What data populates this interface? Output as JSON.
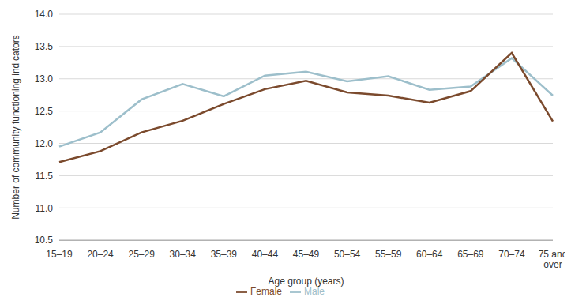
{
  "chart_data": {
    "type": "line",
    "x_label": "Age group (years)",
    "y_label": "Number of community functioning indicators",
    "categories": [
      "15–19",
      "20–24",
      "25–29",
      "30–34",
      "35–39",
      "40–44",
      "45–49",
      "50–54",
      "55–59",
      "60–64",
      "65–69",
      "70–74",
      "75 and over"
    ],
    "series": [
      {
        "name": "Male",
        "color": "#9dbfcb",
        "values": [
          11.95,
          12.17,
          12.68,
          12.92,
          12.73,
          13.05,
          13.11,
          12.96,
          13.04,
          12.83,
          12.88,
          13.32,
          12.74
        ]
      },
      {
        "name": "Female",
        "color": "#7b4a2d",
        "values": [
          11.71,
          11.88,
          12.17,
          12.35,
          12.61,
          12.84,
          12.97,
          12.79,
          12.74,
          12.63,
          12.81,
          13.4,
          12.34
        ]
      }
    ],
    "ylim": [
      10.5,
      14.0
    ],
    "yticks": [
      10.5,
      {
        "value": 11,
        "label": "11.0"
      },
      11.5,
      {
        "value": 12,
        "label": "12.0"
      },
      12.5,
      {
        "value": 13,
        "label": "13.0"
      },
      13.5,
      {
        "value": 14,
        "label": "14.0"
      }
    ],
    "grid": true,
    "legend": "bottom"
  }
}
